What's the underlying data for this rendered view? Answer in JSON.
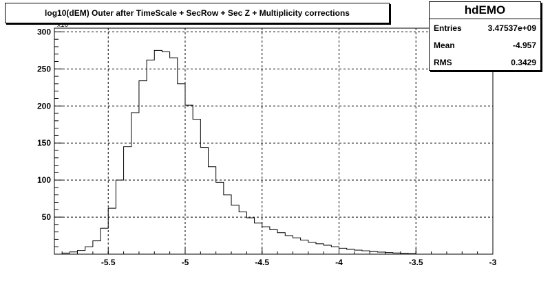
{
  "title": "log10(dEM) Outer after TimeScale + SecRow + Sec Z + Multiplicity corrections",
  "stats": {
    "name": "hdEMO",
    "rows": [
      {
        "label": "Entries",
        "value": "3.47537e+09"
      },
      {
        "label": "Mean",
        "value": "-4.957"
      },
      {
        "label": "RMS",
        "value": "0.3429"
      }
    ]
  },
  "axis_exponent": "x10",
  "chart_data": {
    "type": "histogram",
    "title": "log10(dEM) Outer after TimeScale + SecRow + Sec Z + Multiplicity corrections",
    "xlim": [
      -5.85,
      -3.0
    ],
    "ylim": [
      0,
      305
    ],
    "x_ticks": [
      -5.5,
      -5,
      -4.5,
      -4,
      -3.5,
      -3
    ],
    "x_tick_labels": [
      "-5.5",
      "-5",
      "-4.5",
      "-4",
      "-3.5",
      "-3"
    ],
    "y_ticks": [
      50,
      100,
      150,
      200,
      250,
      300
    ],
    "y_tick_labels": [
      "50",
      "100",
      "150",
      "200",
      "250",
      "300"
    ],
    "grid": true,
    "bin_width": 0.05,
    "bin_edges_start": -5.8,
    "values": [
      1.5,
      3,
      5,
      10,
      18,
      35,
      62,
      100,
      145,
      191,
      234,
      262,
      275,
      273,
      265,
      230,
      201,
      182,
      144,
      118,
      97,
      80,
      66,
      57,
      49,
      42,
      37,
      33,
      29,
      25,
      22,
      19,
      16,
      14,
      12,
      10,
      8,
      6.5,
      5.5,
      4.5,
      3.5,
      2.8,
      2.2,
      1.6,
      1.1,
      0.7
    ]
  }
}
